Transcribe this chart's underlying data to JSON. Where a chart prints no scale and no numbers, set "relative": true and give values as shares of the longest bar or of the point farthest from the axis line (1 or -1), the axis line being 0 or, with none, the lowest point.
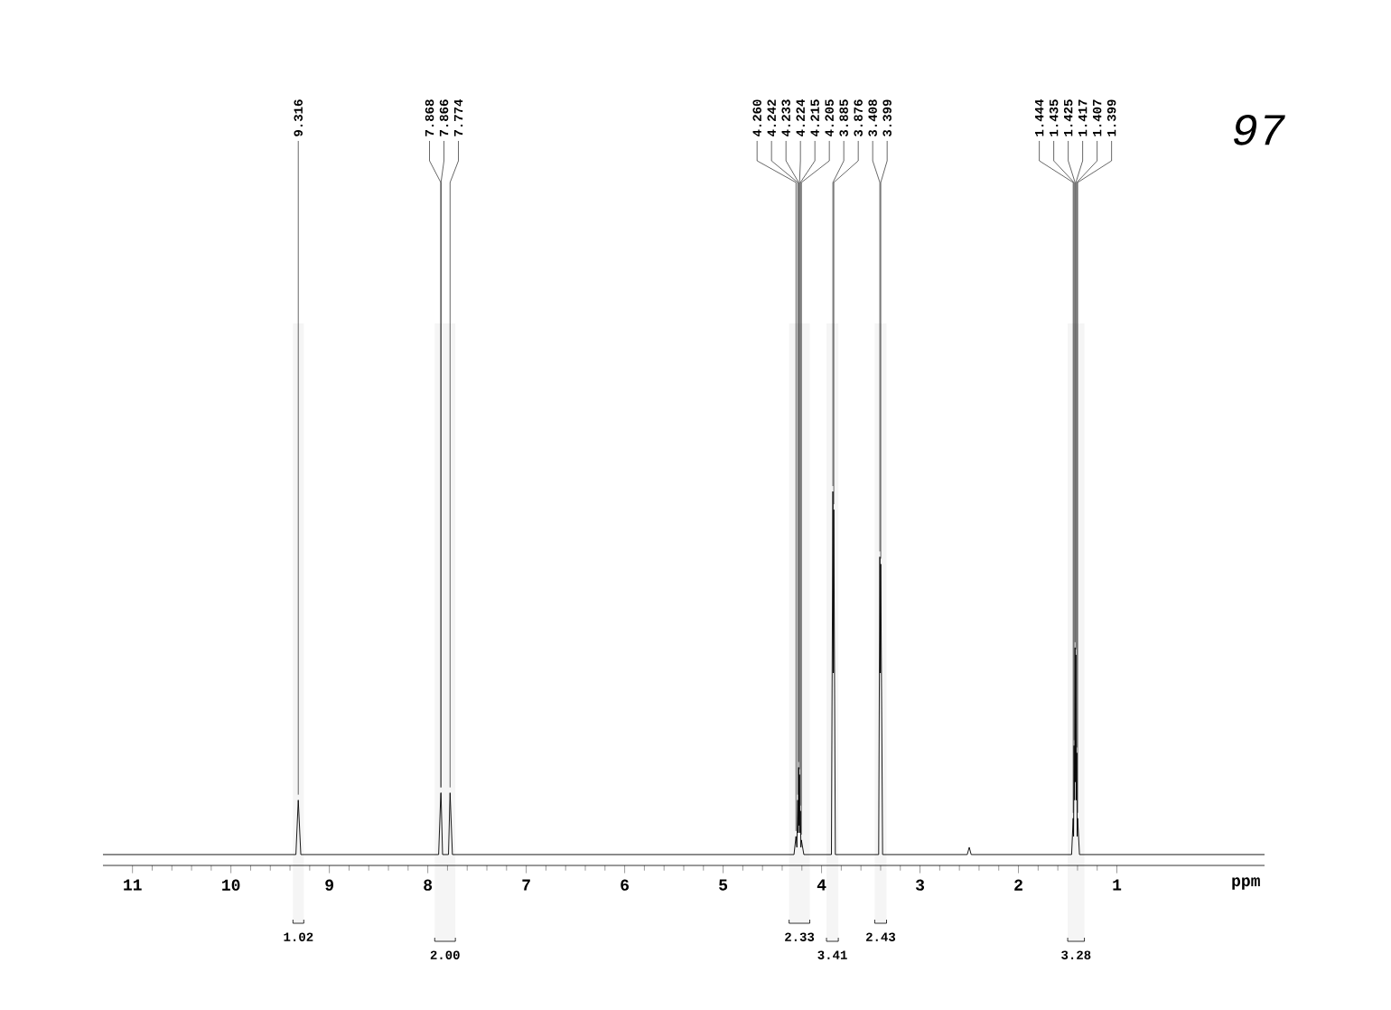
{
  "chart_data": {
    "type": "line",
    "relative": true,
    "xlabel": "ppm",
    "xlim": [
      11.3,
      -0.5
    ],
    "xticks": [
      11,
      10,
      9,
      8,
      7,
      6,
      5,
      4,
      3,
      2,
      1
    ],
    "series": [
      {
        "color": "#000000",
        "x": [
          11.3,
          9.34,
          9.316,
          9.29,
          7.89,
          7.868,
          7.866,
          7.85,
          7.79,
          7.774,
          7.75,
          4.28,
          4.26,
          4.251,
          4.242,
          4.237,
          4.233,
          4.228,
          4.224,
          4.219,
          4.215,
          4.21,
          4.205,
          4.18,
          3.9,
          3.885,
          3.88,
          3.876,
          3.86,
          3.42,
          3.408,
          3.403,
          3.399,
          3.38,
          2.52,
          2.5,
          2.48,
          1.46,
          1.444,
          1.44,
          1.435,
          1.43,
          1.425,
          1.421,
          1.417,
          1.412,
          1.407,
          1.403,
          1.399,
          1.38,
          -0.5
        ],
        "values": [
          0,
          0,
          0.15,
          0,
          0,
          0.17,
          0.17,
          0,
          0,
          0.17,
          0,
          0,
          0.05,
          0.02,
          0.15,
          0.06,
          0.24,
          0.08,
          0.22,
          0.06,
          0.12,
          0.02,
          0.04,
          0,
          0,
          1,
          0.5,
          0.95,
          0,
          0,
          0.82,
          0.5,
          0.8,
          0,
          0,
          0.02,
          0,
          0,
          0.1,
          0.05,
          0.3,
          0.15,
          0.57,
          0.2,
          0.55,
          0.15,
          0.28,
          0.05,
          0.1,
          0,
          0
        ]
      }
    ],
    "annotations": [
      {
        "text": "9.316",
        "x": 9.316,
        "y": 0.15
      },
      {
        "text": "7.868",
        "x": 7.868,
        "y": 0.17
      },
      {
        "text": "7.866",
        "x": 7.866,
        "y": 0.17
      },
      {
        "text": "7.774",
        "x": 7.774,
        "y": 0.17
      },
      {
        "text": "4.260",
        "x": 4.26,
        "y": 0.05
      },
      {
        "text": "4.242",
        "x": 4.242,
        "y": 0.15
      },
      {
        "text": "4.233",
        "x": 4.233,
        "y": 0.24
      },
      {
        "text": "4.224",
        "x": 4.224,
        "y": 0.22
      },
      {
        "text": "4.215",
        "x": 4.215,
        "y": 0.12
      },
      {
        "text": "4.205",
        "x": 4.205,
        "y": 0.04
      },
      {
        "text": "3.885",
        "x": 3.885,
        "y": 1
      },
      {
        "text": "3.876",
        "x": 3.876,
        "y": 0.95
      },
      {
        "text": "3.408",
        "x": 3.408,
        "y": 0.82
      },
      {
        "text": "3.399",
        "x": 3.399,
        "y": 0.8
      },
      {
        "text": "1.444",
        "x": 1.444,
        "y": 0.1
      },
      {
        "text": "1.435",
        "x": 1.435,
        "y": 0.3
      },
      {
        "text": "1.425",
        "x": 1.425,
        "y": 0.57
      },
      {
        "text": "1.417",
        "x": 1.417,
        "y": 0.55
      },
      {
        "text": "1.407",
        "x": 1.407,
        "y": 0.28
      },
      {
        "text": "1.399",
        "x": 1.399,
        "y": 0.1
      },
      "97"
    ],
    "bands": [
      {
        "axis": "x",
        "from": 9.37,
        "to": 9.26,
        "label": "1.02"
      },
      {
        "axis": "x",
        "from": 7.93,
        "to": 7.72,
        "label": "2.00"
      },
      {
        "axis": "x",
        "from": 4.33,
        "to": 4.12,
        "label": "2.33"
      },
      {
        "axis": "x",
        "from": 3.95,
        "to": 3.83,
        "label": "3.41"
      },
      {
        "axis": "x",
        "from": 3.46,
        "to": 3.34,
        "label": "2.43"
      },
      {
        "axis": "x",
        "from": 1.5,
        "to": 1.33,
        "label": "3.28"
      }
    ]
  }
}
